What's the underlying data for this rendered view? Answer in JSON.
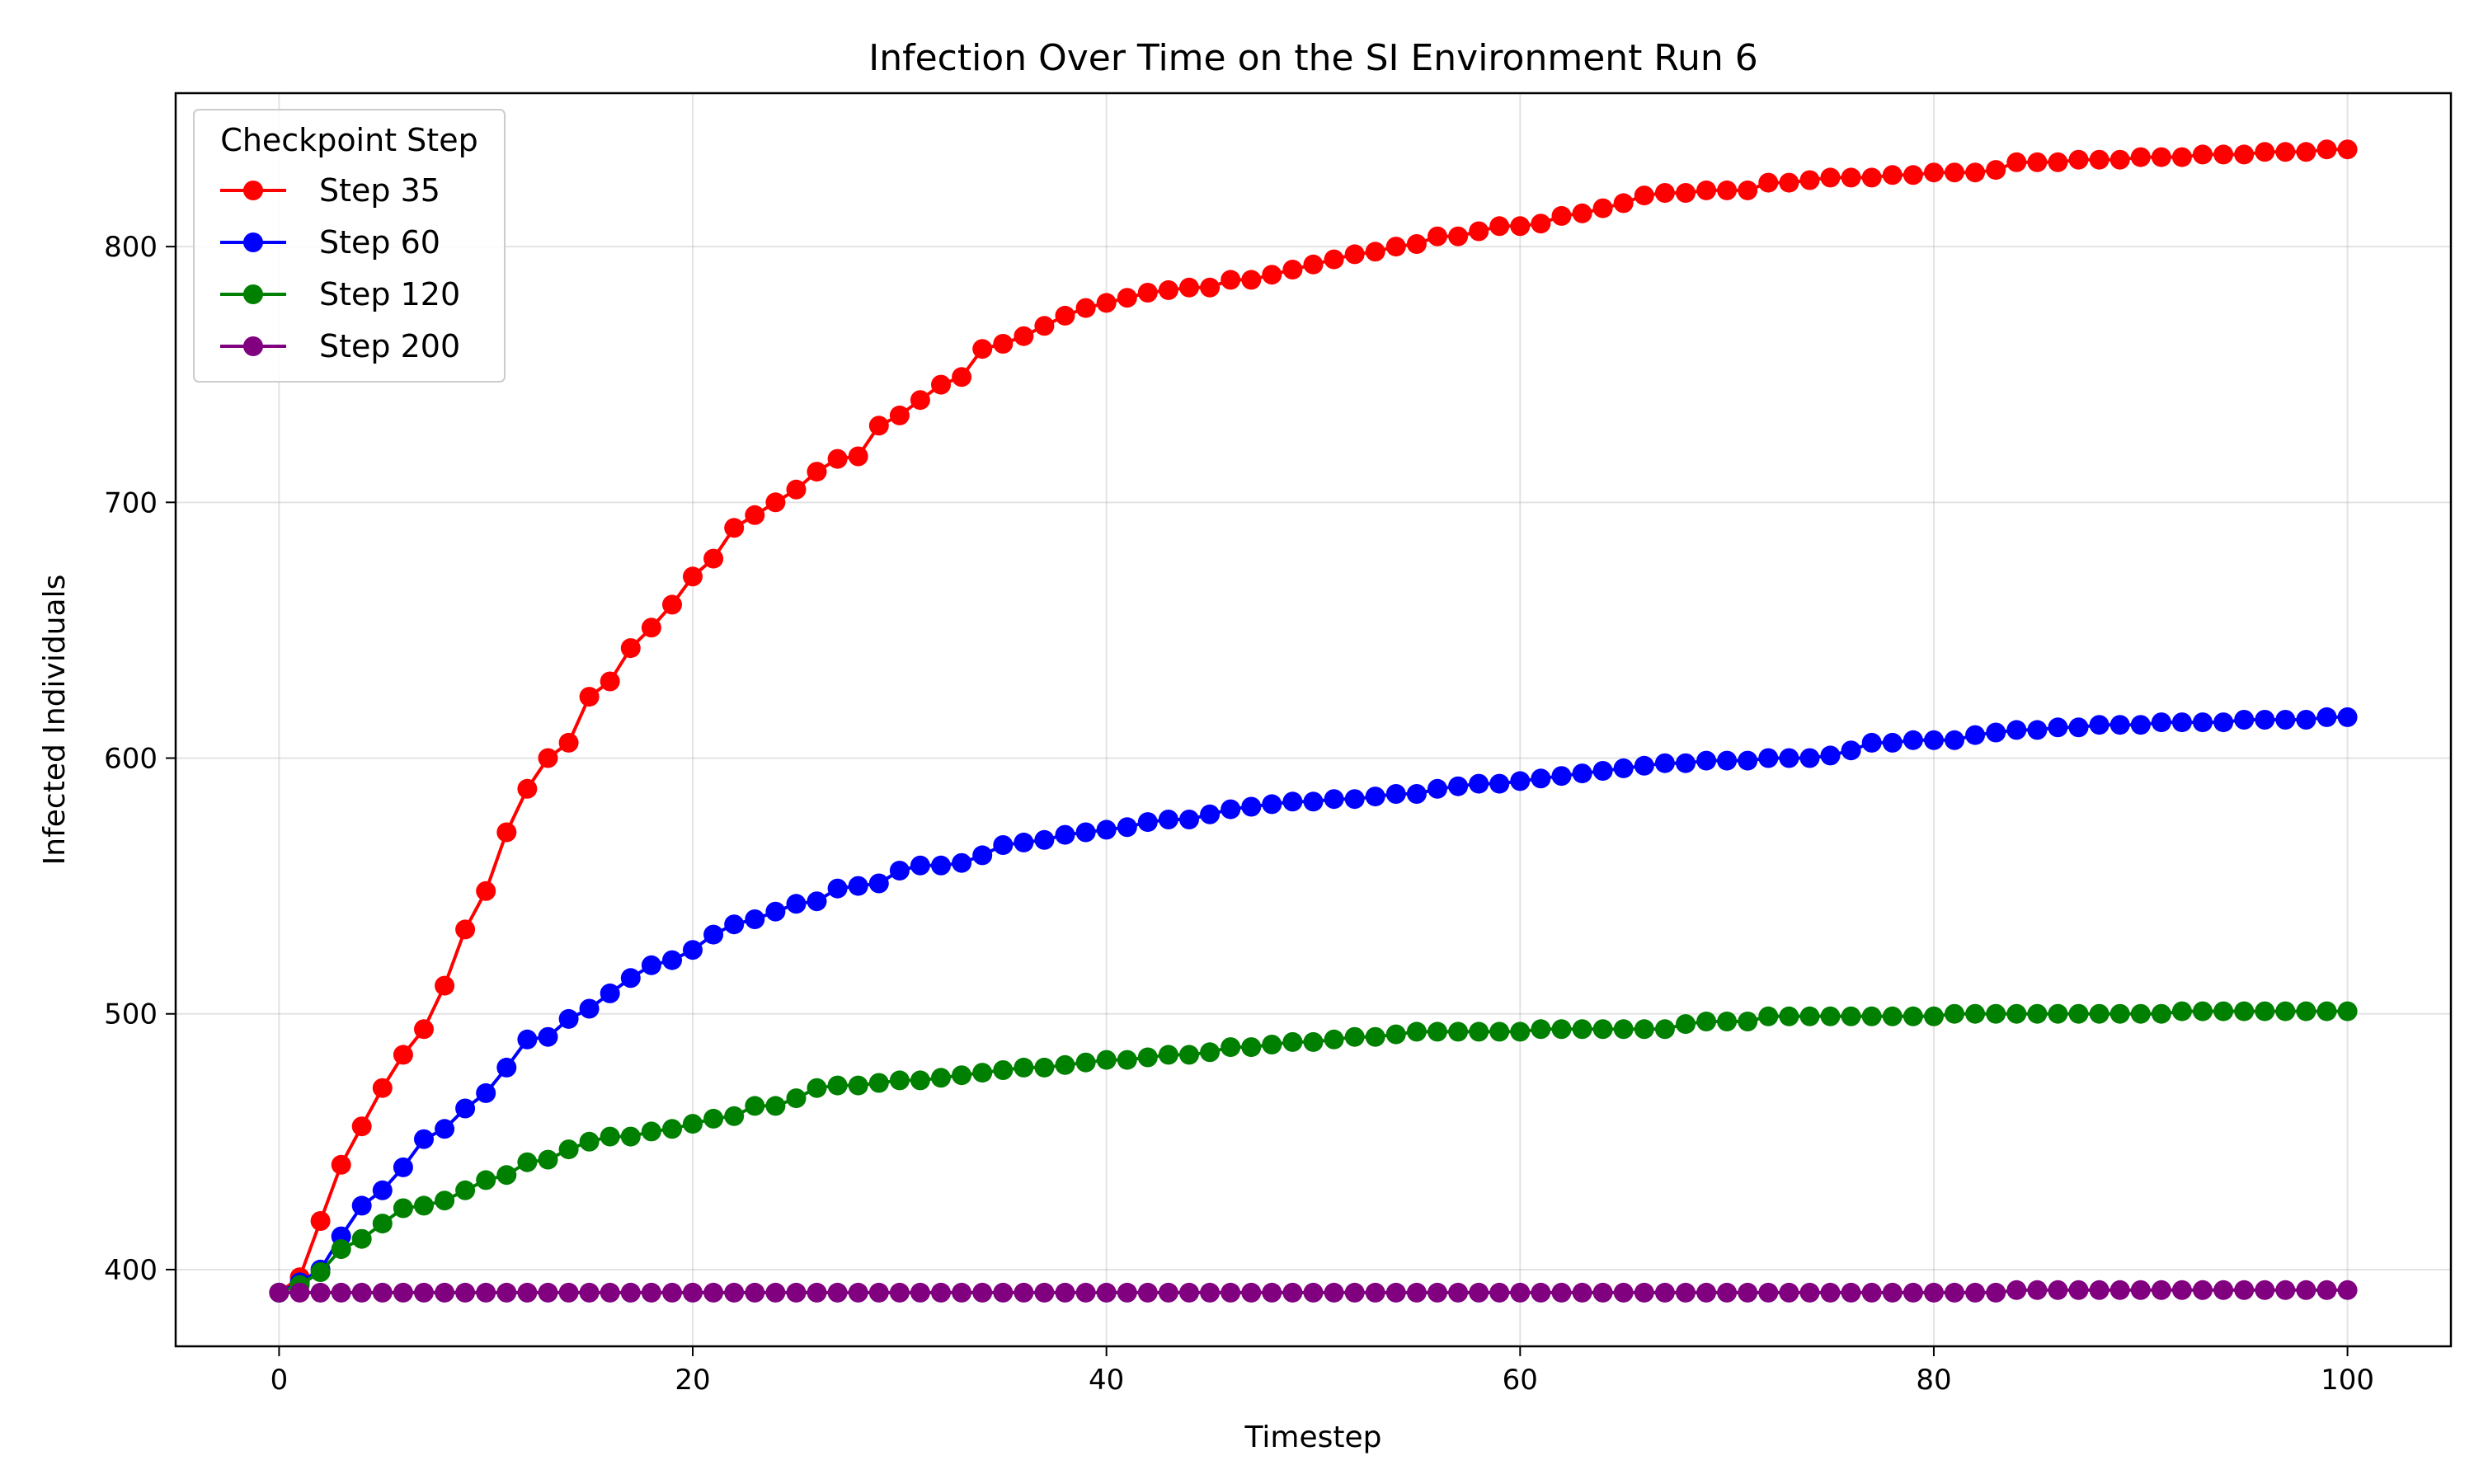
{
  "chart_data": {
    "type": "line",
    "title": "Infection Over Time on the SI Environment Run 6",
    "xlabel": "Timestep",
    "ylabel": "Infected Individuals",
    "xlim": [
      -5,
      105
    ],
    "ylim": [
      370,
      860
    ],
    "xticks": [
      0,
      20,
      40,
      60,
      80,
      100
    ],
    "yticks": [
      400,
      500,
      600,
      700,
      800
    ],
    "grid": true,
    "legend_title": "Checkpoint Step",
    "legend_position": "top-left",
    "x": [
      0,
      1,
      2,
      3,
      4,
      5,
      6,
      7,
      8,
      9,
      10,
      11,
      12,
      13,
      14,
      15,
      16,
      17,
      18,
      19,
      20,
      21,
      22,
      23,
      24,
      25,
      26,
      27,
      28,
      29,
      30,
      31,
      32,
      33,
      34,
      35,
      36,
      37,
      38,
      39,
      40,
      41,
      42,
      43,
      44,
      45,
      46,
      47,
      48,
      49,
      50,
      51,
      52,
      53,
      54,
      55,
      56,
      57,
      58,
      59,
      60,
      61,
      62,
      63,
      64,
      65,
      66,
      67,
      68,
      69,
      70,
      71,
      72,
      73,
      74,
      75,
      76,
      77,
      78,
      79,
      80,
      81,
      82,
      83,
      84,
      85,
      86,
      87,
      88,
      89,
      90,
      91,
      92,
      93,
      94,
      95,
      96,
      97,
      98,
      99,
      100
    ],
    "series": [
      {
        "name": "Step 35",
        "color": "#ff0000",
        "values": [
          391,
          397,
          419,
          441,
          456,
          471,
          484,
          494,
          511,
          533,
          548,
          571,
          588,
          600,
          606,
          624,
          630,
          643,
          651,
          660,
          671,
          678,
          690,
          695,
          700,
          705,
          712,
          717,
          718,
          730,
          734,
          740,
          746,
          749,
          760,
          762,
          765,
          769,
          773,
          776,
          778,
          780,
          782,
          783,
          784,
          784,
          787,
          787,
          789,
          791,
          793,
          795,
          797,
          798,
          800,
          801,
          804,
          804,
          806,
          808,
          808,
          809,
          812,
          813,
          815,
          817,
          820,
          821,
          821,
          822,
          822,
          822,
          825,
          825,
          826,
          827,
          827,
          827,
          828,
          828,
          829,
          829,
          829,
          830,
          833,
          833,
          833,
          834,
          834,
          834,
          835,
          835,
          835,
          836,
          836,
          836,
          837,
          837,
          837,
          838,
          838
        ]
      },
      {
        "name": "Step 60",
        "color": "#0000ff",
        "values": [
          391,
          395,
          400,
          413,
          425,
          431,
          440,
          451,
          455,
          463,
          469,
          479,
          490,
          491,
          498,
          502,
          508,
          514,
          519,
          521,
          525,
          531,
          535,
          537,
          540,
          543,
          544,
          549,
          550,
          551,
          556,
          558,
          558,
          559,
          562,
          566,
          567,
          568,
          570,
          571,
          572,
          573,
          575,
          576,
          576,
          578,
          580,
          581,
          582,
          583,
          583,
          584,
          584,
          585,
          586,
          586,
          588,
          589,
          590,
          590,
          591,
          592,
          593,
          594,
          595,
          596,
          597,
          598,
          598,
          599,
          599,
          599,
          600,
          600,
          600,
          601,
          603,
          606,
          606,
          607,
          607,
          607,
          609,
          610,
          611,
          611,
          612,
          612,
          613,
          613,
          613,
          614,
          614,
          614,
          614,
          615,
          615,
          615,
          615,
          616,
          616
        ]
      },
      {
        "name": "Step 120",
        "color": "#008000",
        "values": [
          391,
          394,
          399,
          408,
          412,
          418,
          424,
          425,
          427,
          431,
          435,
          437,
          442,
          443,
          447,
          450,
          452,
          452,
          454,
          455,
          457,
          459,
          460,
          464,
          464,
          467,
          471,
          472,
          472,
          473,
          474,
          474,
          475,
          476,
          477,
          478,
          479,
          479,
          480,
          481,
          482,
          482,
          483,
          484,
          484,
          485,
          487,
          487,
          488,
          489,
          489,
          490,
          491,
          491,
          492,
          493,
          493,
          493,
          493,
          493,
          493,
          494,
          494,
          494,
          494,
          494,
          494,
          494,
          496,
          497,
          497,
          497,
          499,
          499,
          499,
          499,
          499,
          499,
          499,
          499,
          499,
          500,
          500,
          500,
          500,
          500,
          500,
          500,
          500,
          500,
          500,
          500,
          501,
          501,
          501,
          501,
          501,
          501,
          501,
          501,
          501
        ]
      },
      {
        "name": "Step 200",
        "color": "#800080",
        "values": [
          391,
          391,
          391,
          391,
          391,
          391,
          391,
          391,
          391,
          391,
          391,
          391,
          391,
          391,
          391,
          391,
          391,
          391,
          391,
          391,
          391,
          391,
          391,
          391,
          391,
          391,
          391,
          391,
          391,
          391,
          391,
          391,
          391,
          391,
          391,
          391,
          391,
          391,
          391,
          391,
          391,
          391,
          391,
          391,
          391,
          391,
          391,
          391,
          391,
          391,
          391,
          391,
          391,
          391,
          391,
          391,
          391,
          391,
          391,
          391,
          391,
          391,
          391,
          391,
          391,
          391,
          391,
          391,
          391,
          391,
          391,
          391,
          391,
          391,
          391,
          391,
          391,
          391,
          391,
          391,
          391,
          391,
          391,
          391,
          392,
          392,
          392,
          392,
          392,
          392,
          392,
          392,
          392,
          392,
          392,
          392,
          392,
          392,
          392,
          392,
          392
        ]
      }
    ]
  }
}
